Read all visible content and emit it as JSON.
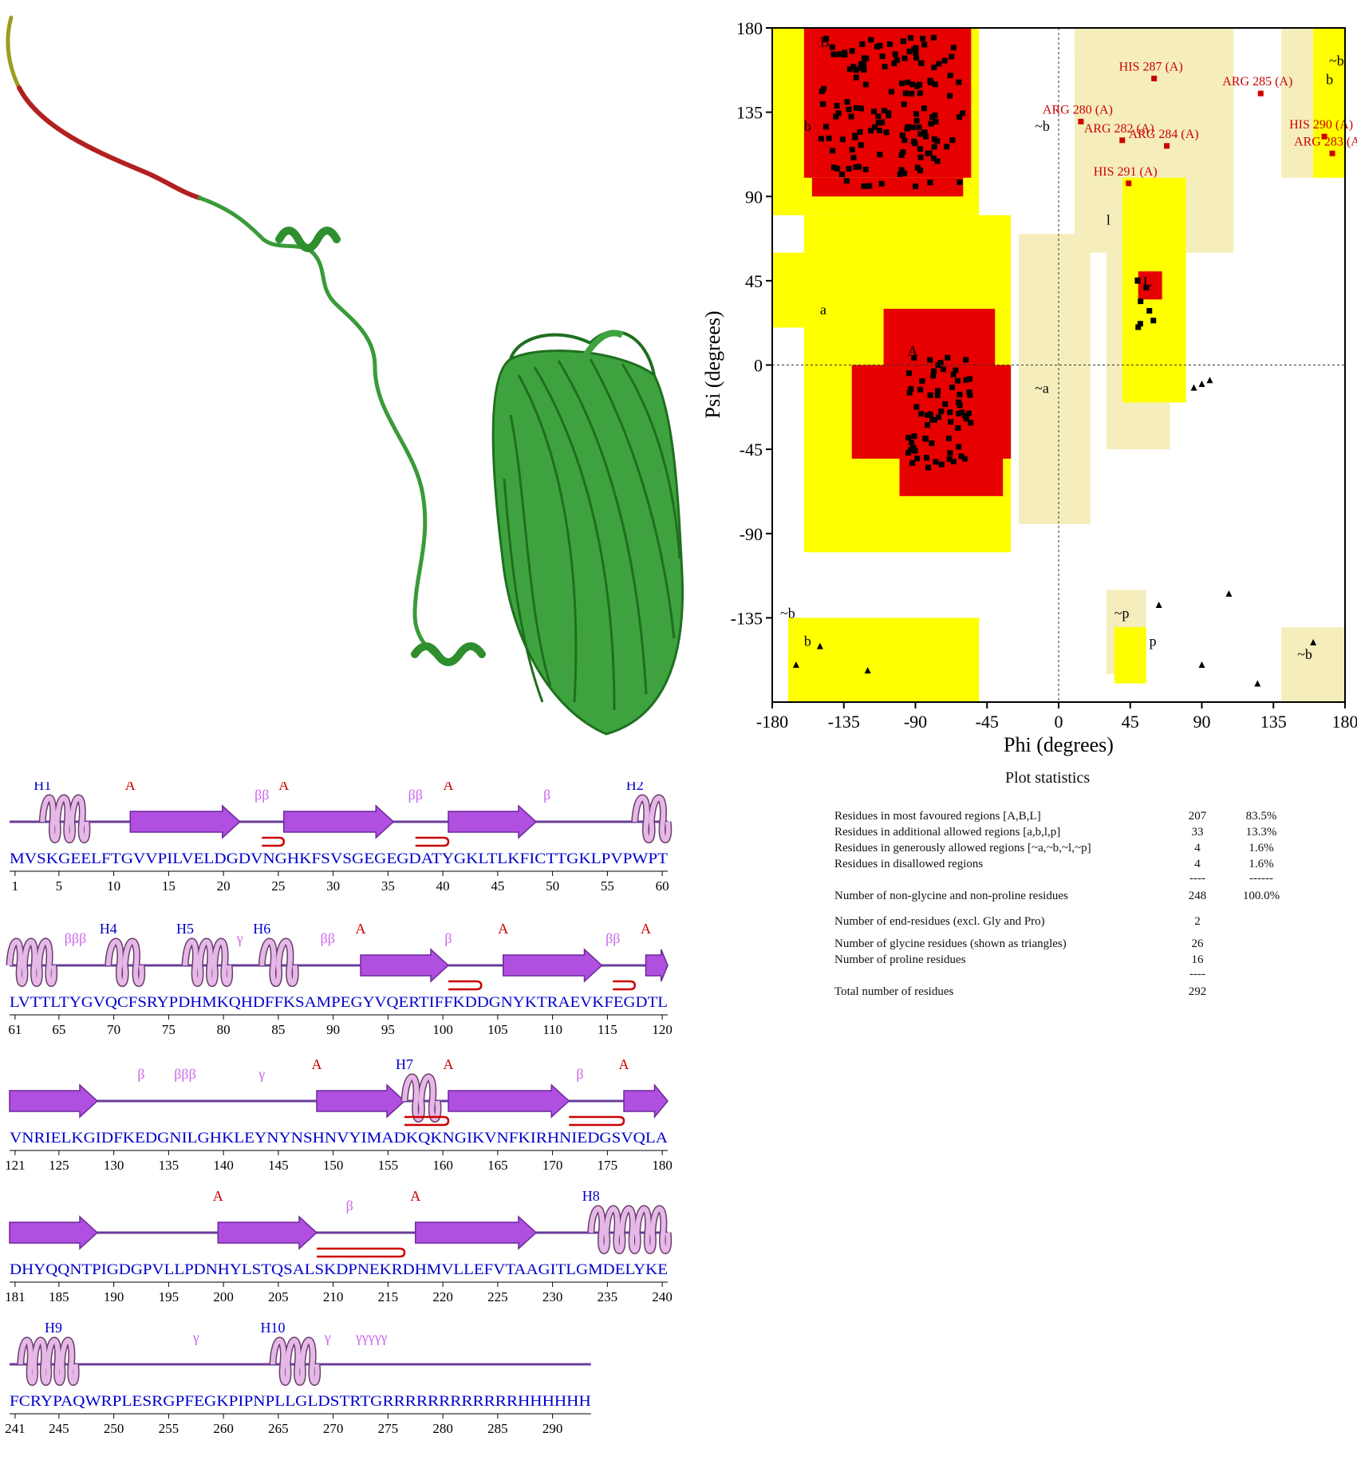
{
  "ramachandran": {
    "x_label": "Phi (degrees)",
    "y_label": "Psi (degrees)",
    "x_ticks": [
      "-180",
      "-135",
      "-90",
      "-45",
      "0",
      "45",
      "90",
      "135",
      "180"
    ],
    "y_ticks": [
      "180",
      "135",
      "90",
      "45",
      "0",
      "-45",
      "-90",
      "-135"
    ],
    "colors": {
      "core": "#e60000",
      "allowed": "#ffff00",
      "generous": "#f5eebc",
      "point": "#000000",
      "outlier": "#cc0000"
    },
    "region_labels": [
      "B",
      "b",
      "A",
      "a",
      "~a",
      "~b",
      "L",
      "l",
      "~b",
      "b",
      "~b",
      "b",
      "~p",
      "p",
      "~b"
    ],
    "outliers": [
      {
        "label": "HIS 287 (A)",
        "phi": 60,
        "psi": 153
      },
      {
        "label": "ARG 285 (A)",
        "phi": 127,
        "psi": 145
      },
      {
        "label": "ARG 280 (A)",
        "phi": 14,
        "psi": 130
      },
      {
        "label": "ARG 282 (A)",
        "phi": 40,
        "psi": 120
      },
      {
        "label": "ARG 284 (A)",
        "phi": 68,
        "psi": 117
      },
      {
        "label": "HIS 290 (A)",
        "phi": 167,
        "psi": 122
      },
      {
        "label": "ARG 283 (A)",
        "phi": 172,
        "psi": 113
      },
      {
        "label": "HIS 291 (A)",
        "phi": 44,
        "psi": 97
      }
    ]
  },
  "plot_statistics": {
    "title": "Plot statistics",
    "rows": [
      {
        "label": "Residues in most favoured regions  [A,B,L]",
        "count": "207",
        "percent": "83.5%"
      },
      {
        "label": "Residues in additional allowed regions  [a,b,l,p]",
        "count": "33",
        "percent": "13.3%"
      },
      {
        "label": "Residues in generously allowed regions  [~a,~b,~l,~p]",
        "count": "4",
        "percent": "1.6%"
      },
      {
        "label": "Residues in disallowed regions",
        "count": "4",
        "percent": "1.6%"
      },
      {
        "label": "",
        "count": "----",
        "percent": "------"
      },
      {
        "label": "Number of non-glycine and non-proline residues",
        "count": "248",
        "percent": "100.0%"
      },
      {
        "label": "Number of end-residues (excl. Gly and Pro)",
        "count": "2",
        "percent": ""
      },
      {
        "label": "Number of glycine residues (shown as triangles)",
        "count": "26",
        "percent": ""
      },
      {
        "label": "Number of proline residues",
        "count": "16",
        "percent": ""
      },
      {
        "label": "",
        "count": "----",
        "percent": ""
      },
      {
        "label": "Total number of residues",
        "count": "292",
        "percent": ""
      }
    ]
  },
  "topology": {
    "colors": {
      "strand": "#b04fe0",
      "helix": "#e6b8e8",
      "hairpin": "#cc0000",
      "sequence": "#0000cc",
      "helix_label": "#0000cc",
      "strand_label": "#cc0000",
      "turn_label": "#cc66ee"
    },
    "rows": [
      {
        "sequence": "MVSKGEELFTGVVPILVELDGDVNGHKFSVSGEGEGDATYGKLTLKFICTTGKLPVPWPT",
        "numbers": [
          "1",
          "5",
          "10",
          "15",
          "20",
          "25",
          "30",
          "35",
          "40",
          "45",
          "50",
          "55",
          "60"
        ],
        "labels": [
          {
            "text": "H1",
            "kind": "helix",
            "pos": 3
          },
          {
            "text": "A",
            "kind": "strand",
            "pos": 11
          },
          {
            "text": "ββ",
            "kind": "turn",
            "pos": 23
          },
          {
            "text": "A",
            "kind": "strand",
            "pos": 25
          },
          {
            "text": "ββ",
            "kind": "turn",
            "pos": 37
          },
          {
            "text": "A",
            "kind": "strand",
            "pos": 40
          },
          {
            "text": "β",
            "kind": "turn",
            "pos": 49
          },
          {
            "text": "H2",
            "kind": "helix",
            "pos": 57
          }
        ]
      },
      {
        "sequence": "LVTTLTYGVQCFSRYPDHMKQHDFFKSAMPEGYVQERTIFFKDDGNYKTRAEVKFEGDTL",
        "numbers": [
          "61",
          "65",
          "70",
          "75",
          "80",
          "85",
          "90",
          "95",
          "100",
          "105",
          "110",
          "115",
          "120"
        ],
        "labels": [
          {
            "text": "βββ",
            "kind": "turn",
            "pos": 6
          },
          {
            "text": "H4",
            "kind": "helix",
            "pos": 9
          },
          {
            "text": "H5",
            "kind": "helix",
            "pos": 16
          },
          {
            "text": "γ",
            "kind": "turn",
            "pos": 21
          },
          {
            "text": "H6",
            "kind": "helix",
            "pos": 23
          },
          {
            "text": "ββ",
            "kind": "turn",
            "pos": 29
          },
          {
            "text": "A",
            "kind": "strand",
            "pos": 32
          },
          {
            "text": "β",
            "kind": "turn",
            "pos": 40
          },
          {
            "text": "A",
            "kind": "strand",
            "pos": 45
          },
          {
            "text": "ββ",
            "kind": "turn",
            "pos": 55
          },
          {
            "text": "A",
            "kind": "strand",
            "pos": 58
          }
        ]
      },
      {
        "sequence": "VNRIELKGIDFKEDGNILGHKLEYNYNSHNVYIMADKQKNGIKVNFKIRHNIEDGSVQLA",
        "numbers": [
          "121",
          "125",
          "130",
          "135",
          "140",
          "145",
          "150",
          "155",
          "160",
          "165",
          "170",
          "175",
          "180"
        ],
        "labels": [
          {
            "text": "β",
            "kind": "turn",
            "pos": 12
          },
          {
            "text": "βββ",
            "kind": "turn",
            "pos": 16
          },
          {
            "text": "γ",
            "kind": "turn",
            "pos": 23
          },
          {
            "text": "A",
            "kind": "strand",
            "pos": 28
          },
          {
            "text": "H7",
            "kind": "helix",
            "pos": 36
          },
          {
            "text": "A",
            "kind": "strand",
            "pos": 40
          },
          {
            "text": "β",
            "kind": "turn",
            "pos": 52
          },
          {
            "text": "A",
            "kind": "strand",
            "pos": 56
          }
        ]
      },
      {
        "sequence": "DHYQQNTPIGDGPVLLPDNHYLSTQSALSKDPNEKRDHMVLLEFVTAAGITLGMDELYKE",
        "numbers": [
          "181",
          "185",
          "190",
          "195",
          "200",
          "205",
          "210",
          "215",
          "220",
          "225",
          "230",
          "235",
          "240"
        ],
        "labels": [
          {
            "text": "A",
            "kind": "strand",
            "pos": 19
          },
          {
            "text": "β",
            "kind": "turn",
            "pos": 31
          },
          {
            "text": "A",
            "kind": "strand",
            "pos": 37
          },
          {
            "text": "H8",
            "kind": "helix",
            "pos": 53
          }
        ]
      },
      {
        "sequence": "FCRYPAQWRPLESRGPFEGKPIPNPLLGLDSTRTGRRRRRRRRRRRRHHHHHH",
        "numbers": [
          "241",
          "245",
          "250",
          "255",
          "260",
          "265",
          "270",
          "275",
          "280",
          "285",
          "290"
        ],
        "labels": [
          {
            "text": "H9",
            "kind": "helix",
            "pos": 4
          },
          {
            "text": "γ",
            "kind": "turn",
            "pos": 17
          },
          {
            "text": "H10",
            "kind": "helix",
            "pos": 24
          },
          {
            "text": "γ",
            "kind": "turn",
            "pos": 29
          },
          {
            "text": "γγγγγ",
            "kind": "turn",
            "pos": 33
          }
        ]
      }
    ]
  }
}
